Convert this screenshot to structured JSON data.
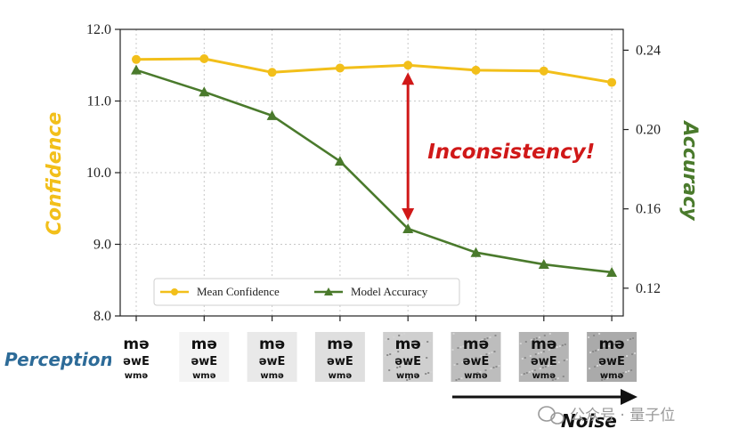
{
  "chart_data": {
    "type": "line",
    "x_count": 8,
    "left_axis": {
      "label": "Confidence",
      "ylim": [
        8.0,
        12.0
      ],
      "ticks": [
        "8.0",
        "9.0",
        "10.0",
        "11.0",
        "12.0"
      ],
      "tick_values": [
        8.0,
        9.0,
        10.0,
        11.0,
        12.0
      ]
    },
    "right_axis": {
      "label": "Accuracy",
      "ylim": [
        0.106,
        0.2505
      ],
      "ticks": [
        "0.12",
        "0.16",
        "0.20",
        "0.24"
      ],
      "tick_values": [
        0.12,
        0.16,
        0.2,
        0.24
      ]
    },
    "series": [
      {
        "name": "Mean Confidence",
        "axis": "left",
        "color": "#f2bf1a",
        "marker": "circle",
        "values": [
          11.58,
          11.59,
          11.4,
          11.46,
          11.5,
          11.43,
          11.42,
          11.26
        ]
      },
      {
        "name": "Model Accuracy",
        "axis": "right",
        "color": "#4a7a2c",
        "marker": "triangle",
        "values": [
          0.23,
          0.219,
          0.207,
          0.184,
          0.15,
          0.138,
          0.132,
          0.128
        ]
      }
    ],
    "grid": true,
    "legend_placement": "bottom-left",
    "annotation": {
      "text": "Inconsistency!",
      "color": "#d01818",
      "x_index": 4
    }
  },
  "perception_label": "Perception",
  "noise_label": "Noise",
  "watermark": "公众号 · 量子位",
  "colors": {
    "confidence": "#f2bf1a",
    "accuracy": "#4a7a2c",
    "perception": "#2d6b98"
  }
}
